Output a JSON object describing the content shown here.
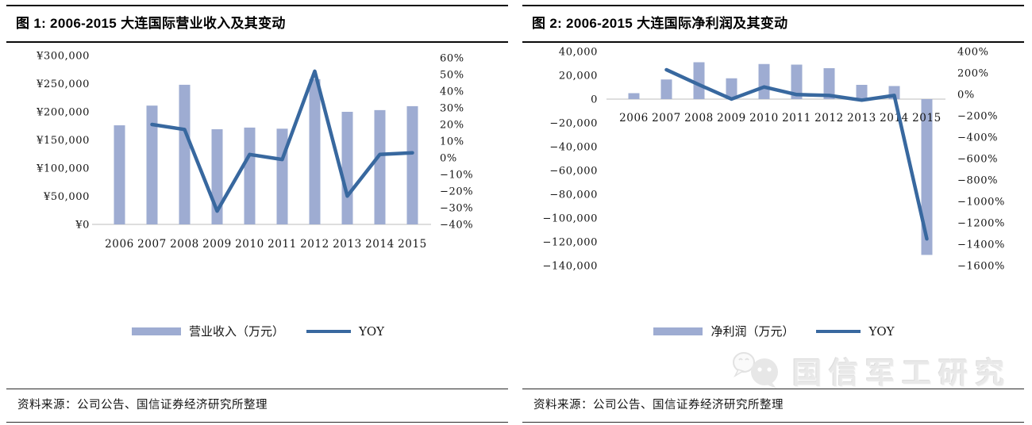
{
  "colors": {
    "bar_fill": "#9EACD2",
    "line_stroke": "#38689F",
    "axis_line": "#D3D3D3",
    "title_color": "#000000",
    "watermark_color": "#E9E9E9"
  },
  "panels": [
    {
      "title": "图 1: 2006-2015 大连国际营业收入及其变动",
      "source": "资料来源：公司公告、国信证券经济研究所整理"
    },
    {
      "title": "图 2: 2006-2015 大连国际净利润及其变动",
      "source": "资料来源：公司公告、国信证券经济研究所整理"
    }
  ],
  "watermark": {
    "text": "国信军工研究",
    "icon": "wechat-icon"
  },
  "chart_data": [
    {
      "type": "bar+line",
      "title": "图 1: 2006-2015 大连国际营业收入及其变动",
      "categories": [
        "2006",
        "2007",
        "2008",
        "2009",
        "2010",
        "2011",
        "2012",
        "2013",
        "2014",
        "2015"
      ],
      "series": [
        {
          "name": "营业收入（万元）",
          "type": "bar",
          "axis": "left",
          "values": [
            176000,
            211000,
            248000,
            169000,
            172000,
            170000,
            258000,
            200000,
            203000,
            210000
          ]
        },
        {
          "name": "YOY",
          "type": "line",
          "axis": "right",
          "values": [
            null,
            0.2,
            0.17,
            -0.32,
            0.02,
            -0.01,
            0.52,
            -0.23,
            0.02,
            0.03
          ]
        }
      ],
      "left_axis": {
        "min": 0,
        "max": 300000,
        "tick_labels": [
          "¥300,000",
          "¥250,000",
          "¥200,000",
          "¥150,000",
          "¥100,000",
          "¥50,000",
          "¥0"
        ]
      },
      "right_axis": {
        "min": -0.4,
        "max": 0.6,
        "tick_labels": [
          "60%",
          "50%",
          "40%",
          "30%",
          "20%",
          "10%",
          "0%",
          "−10%",
          "−20%",
          "−30%",
          "−40%"
        ]
      },
      "legend": [
        "营业收入（万元）",
        "YOY"
      ],
      "grid": false,
      "legend_position": "bottom"
    },
    {
      "type": "bar+line",
      "title": "图 2: 2006-2015 大连国际净利润及其变动",
      "categories": [
        "2006",
        "2007",
        "2008",
        "2009",
        "2010",
        "2011",
        "2012",
        "2013",
        "2014",
        "2015"
      ],
      "series": [
        {
          "name": "净利润（万元）",
          "type": "bar",
          "axis": "left",
          "values": [
            5000,
            16500,
            31000,
            17500,
            29500,
            29000,
            26000,
            12000,
            11000,
            -131000
          ]
        },
        {
          "name": "YOY",
          "type": "line",
          "axis": "right",
          "values": [
            null,
            2.3,
            0.9,
            -0.44,
            0.69,
            -0.02,
            -0.1,
            -0.54,
            -0.1,
            -13.5
          ]
        }
      ],
      "left_axis": {
        "min": -140000,
        "max": 40000,
        "tick_labels": [
          "40,000",
          "20,000",
          "0",
          "−20,000",
          "−40,000",
          "−60,000",
          "−80,000",
          "−100,000",
          "−120,000",
          "−140,000"
        ]
      },
      "right_axis": {
        "min": -16,
        "max": 4,
        "tick_labels": [
          "400%",
          "200%",
          "0%",
          "−200%",
          "−400%",
          "−600%",
          "−800%",
          "−1000%",
          "−1200%",
          "−1400%",
          "−1600%"
        ]
      },
      "legend": [
        "净利润（万元）",
        "YOY"
      ],
      "grid": false,
      "legend_position": "bottom"
    }
  ]
}
